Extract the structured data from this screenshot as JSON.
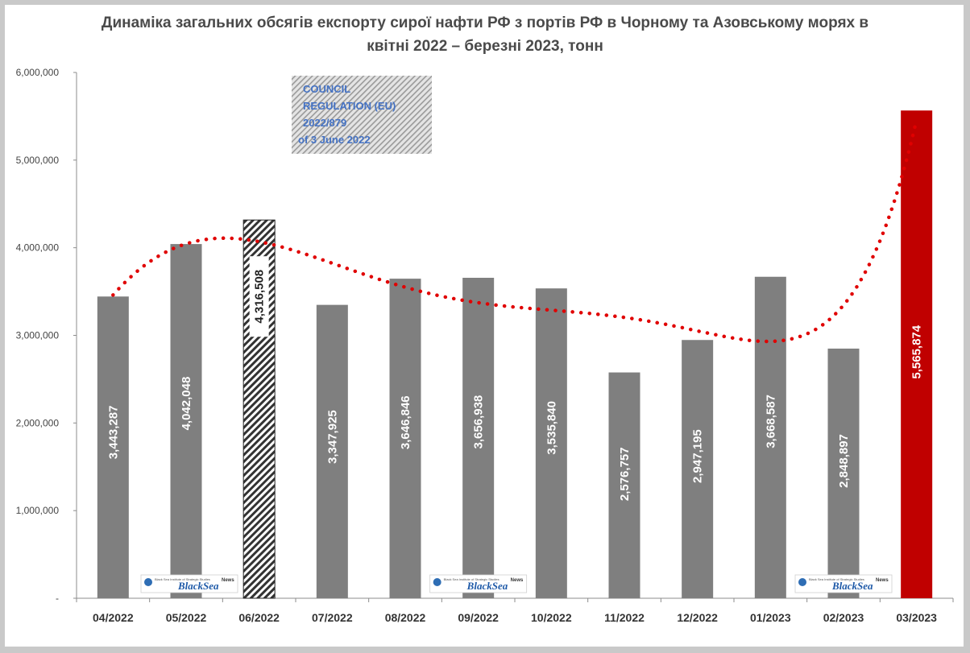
{
  "chart_data": {
    "type": "bar",
    "title_lines": [
      "Динаміка загальних обсягів експорту сирої нафти РФ з портів РФ в Чорному та Азовському морях в",
      "квітні 2022 – березні 2023, тонн"
    ],
    "categories": [
      "04/2022",
      "05/2022",
      "06/2022",
      "07/2022",
      "08/2022",
      "09/2022",
      "10/2022",
      "11/2022",
      "12/2022",
      "01/2023",
      "02/2023",
      "03/2023"
    ],
    "values": [
      3443287,
      4042048,
      4316508,
      3347925,
      3646846,
      3656938,
      3535840,
      2576757,
      2947195,
      3668587,
      2848897,
      5565874
    ],
    "data_labels": [
      "3,443,287",
      "4,042,048",
      "4,316,508",
      "3,347,925",
      "3,646,846",
      "3,656,938",
      "3,535,840",
      "2,576,757",
      "2,947,195",
      "3,668,587",
      "2,848,897",
      "5,565,874"
    ],
    "bar_styles": [
      "solid",
      "solid",
      "hatched",
      "solid",
      "solid",
      "solid",
      "solid",
      "solid",
      "solid",
      "solid",
      "solid",
      "highlight"
    ],
    "colors": {
      "bar": "#7f7f7f",
      "highlight": "#c00000",
      "hatch": "#333333",
      "trend": "#e00000"
    },
    "ylim": [
      0,
      6000000
    ],
    "yticks": [
      0,
      1000000,
      2000000,
      3000000,
      4000000,
      5000000,
      6000000
    ],
    "ytick_labels": [
      "-",
      "1,000,000",
      "2,000,000",
      "3,000,000",
      "4,000,000",
      "5,000,000",
      "6,000,000"
    ],
    "trendline": "polynomial, dotted red",
    "grid": false,
    "legend": "none",
    "annotation": {
      "lines": [
        "COUNCIL",
        "REGULATION (EU)",
        "2022/879",
        "of 3 June 2022"
      ]
    },
    "watermark": {
      "text": "BlackSea",
      "tag": "News",
      "small": "Black Sea Institute of Strategic Studies"
    }
  }
}
